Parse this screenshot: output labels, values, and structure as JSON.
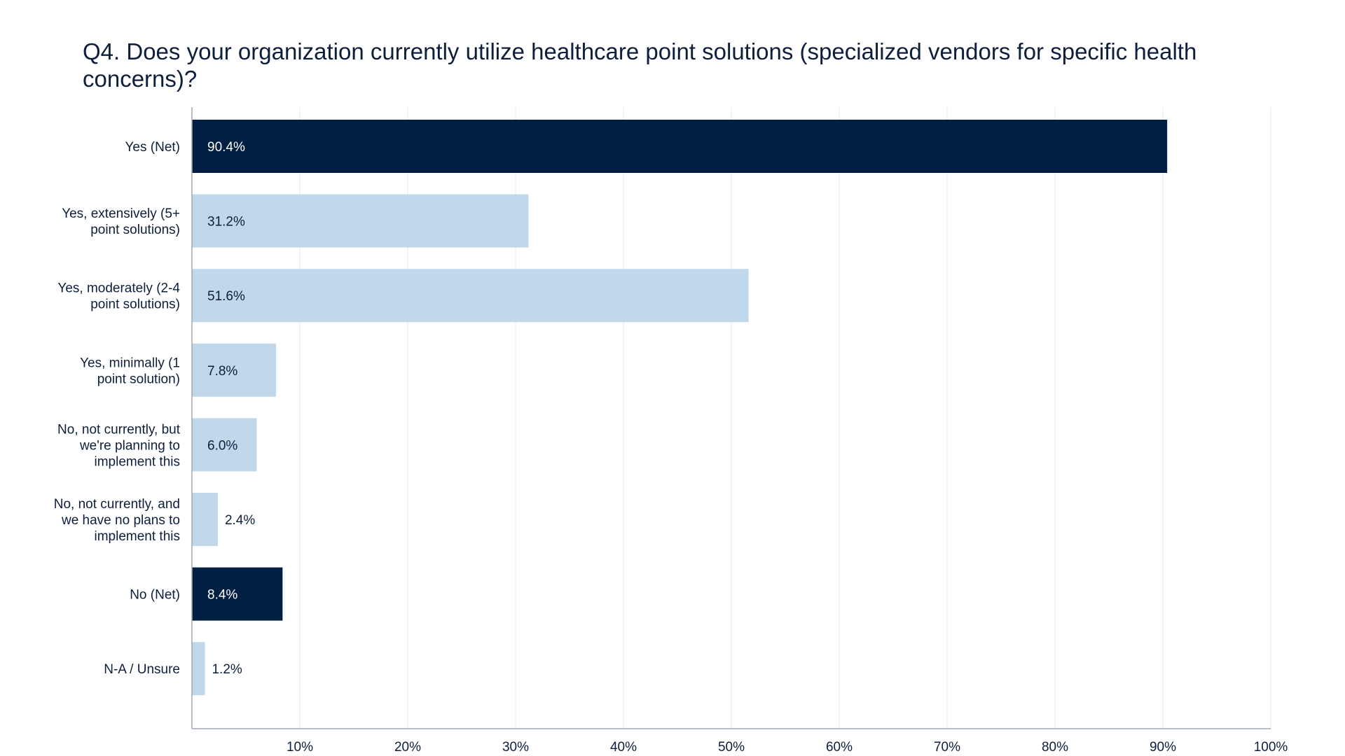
{
  "title": "Q4. Does your organization currently utilize healthcare point solutions (specialized vendors for specific health concerns)?",
  "chart_data": {
    "type": "bar",
    "orientation": "horizontal",
    "title": "Q4. Does your organization currently utilize healthcare point solutions (specialized vendors for specific health concerns)?",
    "xlabel": "",
    "ylabel": "",
    "categories": [
      "Yes (Net)",
      "Yes, extensively (5+ point solutions)",
      "Yes, moderately (2-4 point solutions)",
      "Yes, minimally (1 point solution)",
      "No, not currently, but we're planning to implement this",
      "No, not currently, and we have no plans to implement this",
      "No (Net)",
      "N-A / Unsure"
    ],
    "category_lines": [
      [
        "Yes (Net)"
      ],
      [
        "Yes, extensively (5+",
        "point solutions)"
      ],
      [
        "Yes, moderately (2-4",
        "point solutions)"
      ],
      [
        "Yes, minimally (1",
        "point solution)"
      ],
      [
        "No, not currently, but",
        "we're planning to",
        "implement this"
      ],
      [
        "No, not currently, and",
        "we have no plans to",
        "implement this"
      ],
      [
        "No (Net)"
      ],
      [
        "N-A / Unsure"
      ]
    ],
    "values": [
      90.4,
      31.2,
      51.6,
      7.8,
      6.0,
      2.4,
      8.4,
      1.2
    ],
    "data_labels": [
      "90.4%",
      "31.2%",
      "51.6%",
      "7.8%",
      "6.0%",
      "2.4%",
      "8.4%",
      "1.2%"
    ],
    "is_net": [
      true,
      false,
      false,
      false,
      false,
      false,
      true,
      false
    ],
    "xlim": [
      0,
      100
    ],
    "x_ticks": [
      10,
      20,
      30,
      40,
      50,
      60,
      70,
      80,
      90,
      100
    ],
    "x_tick_labels": [
      "10%",
      "20%",
      "30%",
      "40%",
      "50%",
      "60%",
      "70%",
      "80%",
      "90%",
      "100%"
    ],
    "grid": true,
    "colors": {
      "net_bar": "#001f42",
      "detail_bar": "#c1d8eb",
      "net_label": "#ffffff",
      "detail_label": "#0d1f3c",
      "grid": "#e3e7ec",
      "axis": "#a0a8b2"
    }
  }
}
